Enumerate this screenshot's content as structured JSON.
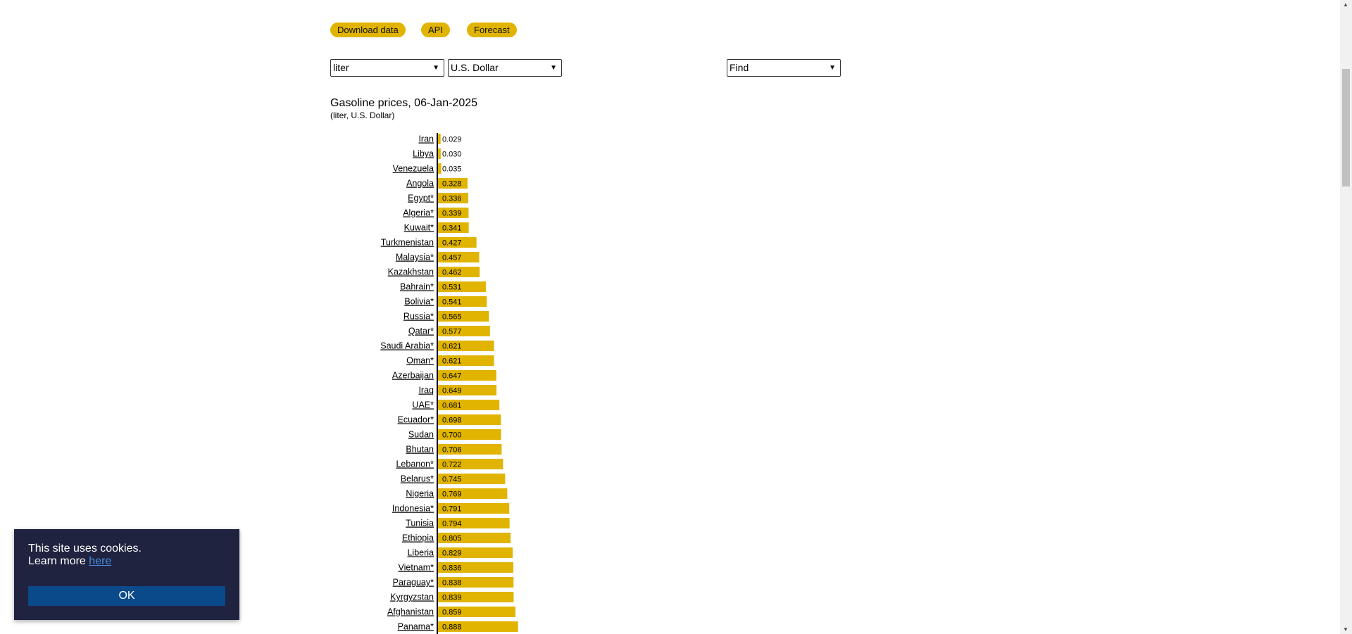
{
  "buttons": {
    "download": "Download data",
    "api": "API",
    "forecast": "Forecast"
  },
  "selects": {
    "unit": "liter",
    "currency": "U.S. Dollar",
    "find": "Find"
  },
  "chart_data": {
    "type": "bar",
    "orientation": "horizontal",
    "title": "Gasoline prices, 06-Jan-2025",
    "subtitle": "(liter, U.S. Dollar)",
    "categories": [
      "Iran",
      "Libya",
      "Venezuela",
      "Angola",
      "Egypt*",
      "Algeria*",
      "Kuwait*",
      "Turkmenistan",
      "Malaysia*",
      "Kazakhstan",
      "Bahrain*",
      "Bolivia*",
      "Russia*",
      "Qatar*",
      "Saudi Arabia*",
      "Oman*",
      "Azerbaijan",
      "Iraq",
      "UAE*",
      "Ecuador*",
      "Sudan",
      "Bhutan",
      "Lebanon*",
      "Belarus*",
      "Nigeria",
      "Indonesia*",
      "Tunisia",
      "Ethiopia",
      "Liberia",
      "Vietnam*",
      "Paraguay*",
      "Kyrgyzstan",
      "Afghanistan",
      "Panama*"
    ],
    "values": [
      0.029,
      0.03,
      0.035,
      0.328,
      0.336,
      0.339,
      0.341,
      0.427,
      0.457,
      0.462,
      0.531,
      0.541,
      0.565,
      0.577,
      0.621,
      0.621,
      0.647,
      0.649,
      0.681,
      0.698,
      0.7,
      0.706,
      0.722,
      0.745,
      0.769,
      0.791,
      0.794,
      0.805,
      0.829,
      0.836,
      0.838,
      0.839,
      0.859,
      0.888
    ],
    "labels": [
      "0.029",
      "0.030",
      "0.035",
      "0.328",
      "0.336",
      "0.339",
      "0.341",
      "0.427",
      "0.457",
      "0.462",
      "0.531",
      "0.541",
      "0.565",
      "0.577",
      "0.621",
      "0.621",
      "0.647",
      "0.649",
      "0.681",
      "0.698",
      "0.700",
      "0.706",
      "0.722",
      "0.745",
      "0.769",
      "0.791",
      "0.794",
      "0.805",
      "0.829",
      "0.836",
      "0.838",
      "0.839",
      "0.859",
      "0.888"
    ],
    "bar_color": "#e0b400",
    "grid": false
  },
  "cookie": {
    "line1": "This site uses cookies.",
    "learn": "Learn more",
    "link": "here",
    "ok": "OK"
  },
  "colors": {
    "accent": "#e0b400",
    "cookie_bg": "#1f2340",
    "ok_bg": "#0a4a8a",
    "link": "#4a8ddc"
  }
}
